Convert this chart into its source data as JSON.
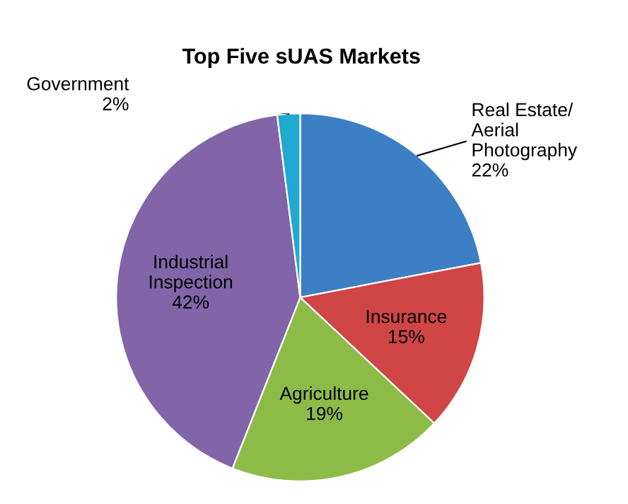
{
  "chart_data": {
    "type": "pie",
    "title": "Top Five sUAS Markets",
    "categories": [
      "Real Estate/\nAerial\nPhotography",
      "Insurance",
      "Agriculture",
      "Industrial\nInspection",
      "Government"
    ],
    "values": [
      22,
      15,
      19,
      42,
      2
    ],
    "value_labels": [
      "22%",
      "15%",
      "19%",
      "42%",
      "2%"
    ],
    "colors": [
      "#3d7fc4",
      "#d04545",
      "#8dbb48",
      "#8264a8",
      "#22a9d2"
    ],
    "legend": false
  }
}
